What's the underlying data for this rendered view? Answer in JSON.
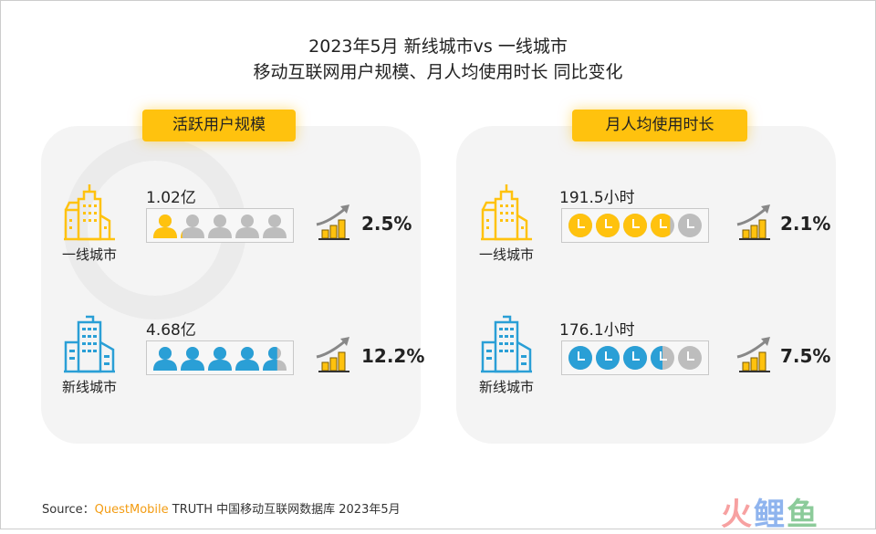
{
  "title": {
    "line1": "2023年5月 新线城市vs 一线城市",
    "line2": "移动互联网用户规模、月人均使用时长 同比变化"
  },
  "watermark": "QUESTMOBILE",
  "colors": {
    "tier1": "#FFC20E",
    "new_tier": "#2A9FD6",
    "inactive": "#BDBDBD",
    "pill": "#FFC20E"
  },
  "panels": [
    {
      "label": "活跃用户规模",
      "icon": "person-icon",
      "unit_total": 5,
      "rows": [
        {
          "city": "一线城市",
          "value": "1.02亿",
          "fill": 1.1,
          "growth": "2.5%",
          "color": "#FFC20E"
        },
        {
          "city": "新线城市",
          "value": "4.68亿",
          "fill": 4.6,
          "growth": "12.2%",
          "color": "#2A9FD6"
        }
      ]
    },
    {
      "label": "月人均使用时长",
      "icon": "clock-icon",
      "unit_total": 5,
      "rows": [
        {
          "city": "一线城市",
          "value": "191.5小时",
          "fill": 3.8,
          "growth": "2.1%",
          "color": "#FFC20E"
        },
        {
          "city": "新线城市",
          "value": "176.1小时",
          "fill": 3.5,
          "growth": "7.5%",
          "color": "#2A9FD6"
        }
      ]
    }
  ],
  "footer": {
    "source_label": "Source：",
    "brand": "QuestMobile",
    "source_text": "TRUTH 中国移动互联网数据库 2023年5月",
    "logo": [
      "火",
      "鲤",
      "鱼"
    ]
  }
}
